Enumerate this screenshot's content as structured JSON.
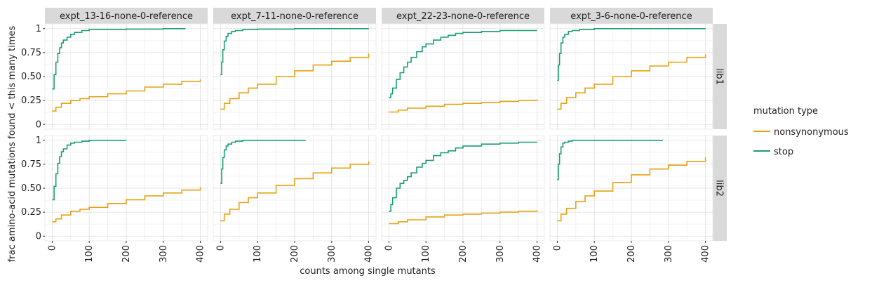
{
  "figure": {
    "ylabel": "frac amino-acid mutations found < this many times",
    "xlabel": "counts among single mutants",
    "legend_title": "mutation type",
    "legend_placement": "right",
    "legend_items": [
      {
        "label": "nonsynonymous",
        "color": "#E6A213"
      },
      {
        "label": "stop",
        "color": "#1B9E77"
      }
    ],
    "row_labels": [
      "lib1",
      "lib2"
    ],
    "col_labels": [
      "expt_13-16-none-0-reference",
      "expt_7-11-none-0-reference",
      "expt_22-23-none-0-reference",
      "expt_3-6-none-0-reference"
    ],
    "x_ticks": [
      "0",
      "100",
      "200",
      "300",
      "400"
    ],
    "y_ticks": [
      "0",
      "0.25",
      "0.50",
      "0.75",
      "1"
    ]
  },
  "chart_data": {
    "type": "line",
    "step": true,
    "grid": true,
    "xlim": [
      0,
      400
    ],
    "ylim": [
      0,
      1
    ],
    "facets": [
      {
        "panel": "expt_13-16-none-0-reference",
        "library": "lib1",
        "series": [
          {
            "name": "nonsynonymous",
            "x": [
              0,
              10,
              25,
              50,
              75,
              100,
              150,
              200,
              250,
              300,
              350,
              400
            ],
            "y": [
              0.14,
              0.18,
              0.22,
              0.25,
              0.27,
              0.29,
              0.32,
              0.35,
              0.39,
              0.42,
              0.45,
              0.47
            ]
          },
          {
            "name": "stop",
            "x": [
              0,
              5,
              10,
              15,
              20,
              25,
              30,
              40,
              50,
              60,
              80,
              100,
              150,
              200,
              250,
              300,
              360
            ],
            "y": [
              0.37,
              0.52,
              0.65,
              0.74,
              0.8,
              0.85,
              0.88,
              0.91,
              0.94,
              0.96,
              0.98,
              0.99,
              0.99,
              0.995,
              0.995,
              1.0,
              1.0
            ]
          }
        ]
      },
      {
        "panel": "expt_7-11-none-0-reference",
        "library": "lib1",
        "series": [
          {
            "name": "nonsynonymous",
            "x": [
              0,
              10,
              25,
              50,
              75,
              100,
              150,
              200,
              250,
              300,
              350,
              400
            ],
            "y": [
              0.16,
              0.22,
              0.27,
              0.33,
              0.38,
              0.42,
              0.5,
              0.56,
              0.62,
              0.66,
              0.7,
              0.74
            ]
          },
          {
            "name": "stop",
            "x": [
              0,
              3,
              6,
              10,
              15,
              20,
              30,
              40,
              60,
              100,
              200,
              300,
              400
            ],
            "y": [
              0.52,
              0.65,
              0.78,
              0.87,
              0.92,
              0.95,
              0.97,
              0.98,
              0.99,
              0.995,
              1.0,
              1.0,
              1.0
            ]
          }
        ]
      },
      {
        "panel": "expt_22-23-none-0-reference",
        "library": "lib1",
        "series": [
          {
            "name": "nonsynonymous",
            "x": [
              0,
              25,
              50,
              100,
              150,
              200,
              250,
              300,
              350,
              400
            ],
            "y": [
              0.13,
              0.15,
              0.17,
              0.19,
              0.21,
              0.22,
              0.23,
              0.24,
              0.25,
              0.26
            ]
          },
          {
            "name": "stop",
            "x": [
              0,
              5,
              10,
              20,
              30,
              40,
              50,
              60,
              75,
              90,
              100,
              120,
              140,
              160,
              180,
              200,
              250,
              300,
              350,
              400
            ],
            "y": [
              0.28,
              0.32,
              0.38,
              0.47,
              0.54,
              0.6,
              0.65,
              0.7,
              0.76,
              0.81,
              0.84,
              0.88,
              0.91,
              0.93,
              0.95,
              0.96,
              0.97,
              0.98,
              0.98,
              0.98
            ]
          }
        ]
      },
      {
        "panel": "expt_3-6-none-0-reference",
        "library": "lib1",
        "series": [
          {
            "name": "nonsynonymous",
            "x": [
              0,
              10,
              25,
              50,
              75,
              100,
              150,
              200,
              250,
              300,
              350,
              400
            ],
            "y": [
              0.16,
              0.22,
              0.28,
              0.33,
              0.38,
              0.42,
              0.5,
              0.56,
              0.61,
              0.65,
              0.7,
              0.73
            ]
          },
          {
            "name": "stop",
            "x": [
              0,
              3,
              6,
              10,
              15,
              20,
              30,
              40,
              60,
              100,
              200,
              300,
              400
            ],
            "y": [
              0.46,
              0.62,
              0.74,
              0.85,
              0.91,
              0.94,
              0.97,
              0.98,
              0.99,
              1.0,
              1.0,
              1.0,
              1.0
            ]
          }
        ]
      },
      {
        "panel": "expt_13-16-none-0-reference",
        "library": "lib2",
        "series": [
          {
            "name": "nonsynonymous",
            "x": [
              0,
              10,
              25,
              50,
              75,
              100,
              150,
              200,
              250,
              300,
              350,
              400
            ],
            "y": [
              0.15,
              0.18,
              0.22,
              0.26,
              0.28,
              0.3,
              0.34,
              0.38,
              0.42,
              0.45,
              0.48,
              0.51
            ]
          },
          {
            "name": "stop",
            "x": [
              0,
              5,
              10,
              15,
              20,
              25,
              30,
              40,
              50,
              60,
              80,
              100,
              150,
              200
            ],
            "y": [
              0.38,
              0.52,
              0.65,
              0.76,
              0.83,
              0.88,
              0.91,
              0.95,
              0.97,
              0.98,
              0.99,
              1.0,
              1.0,
              1.0
            ]
          }
        ]
      },
      {
        "panel": "expt_7-11-none-0-reference",
        "library": "lib2",
        "series": [
          {
            "name": "nonsynonymous",
            "x": [
              0,
              10,
              25,
              50,
              75,
              100,
              150,
              200,
              250,
              300,
              350,
              400
            ],
            "y": [
              0.16,
              0.23,
              0.28,
              0.35,
              0.4,
              0.45,
              0.53,
              0.6,
              0.66,
              0.71,
              0.75,
              0.78
            ]
          },
          {
            "name": "stop",
            "x": [
              0,
              3,
              6,
              10,
              15,
              20,
              30,
              40,
              60,
              100,
              150,
              230
            ],
            "y": [
              0.55,
              0.7,
              0.82,
              0.9,
              0.94,
              0.96,
              0.98,
              0.99,
              1.0,
              1.0,
              1.0,
              1.0
            ]
          }
        ]
      },
      {
        "panel": "expt_22-23-none-0-reference",
        "library": "lib2",
        "series": [
          {
            "name": "nonsynonymous",
            "x": [
              0,
              25,
              50,
              100,
              150,
              200,
              250,
              300,
              350,
              400
            ],
            "y": [
              0.13,
              0.15,
              0.17,
              0.2,
              0.22,
              0.23,
              0.24,
              0.25,
              0.26,
              0.27
            ]
          },
          {
            "name": "stop",
            "x": [
              0,
              5,
              10,
              20,
              30,
              40,
              50,
              60,
              75,
              90,
              100,
              120,
              140,
              160,
              180,
              200,
              250,
              300,
              350,
              400
            ],
            "y": [
              0.26,
              0.33,
              0.4,
              0.5,
              0.55,
              0.58,
              0.62,
              0.66,
              0.72,
              0.76,
              0.79,
              0.84,
              0.87,
              0.89,
              0.92,
              0.94,
              0.96,
              0.97,
              0.98,
              0.98
            ]
          }
        ]
      },
      {
        "panel": "expt_3-6-none-0-reference",
        "library": "lib2",
        "series": [
          {
            "name": "nonsynonymous",
            "x": [
              0,
              10,
              25,
              50,
              75,
              100,
              150,
              200,
              250,
              300,
              350,
              400
            ],
            "y": [
              0.16,
              0.23,
              0.29,
              0.36,
              0.42,
              0.47,
              0.56,
              0.64,
              0.7,
              0.74,
              0.78,
              0.82
            ]
          },
          {
            "name": "stop",
            "x": [
              0,
              3,
              6,
              10,
              15,
              20,
              30,
              40,
              60,
              100,
              200,
              285
            ],
            "y": [
              0.59,
              0.75,
              0.86,
              0.93,
              0.97,
              0.98,
              0.99,
              1.0,
              1.0,
              1.0,
              1.0,
              1.0
            ]
          }
        ]
      }
    ]
  }
}
